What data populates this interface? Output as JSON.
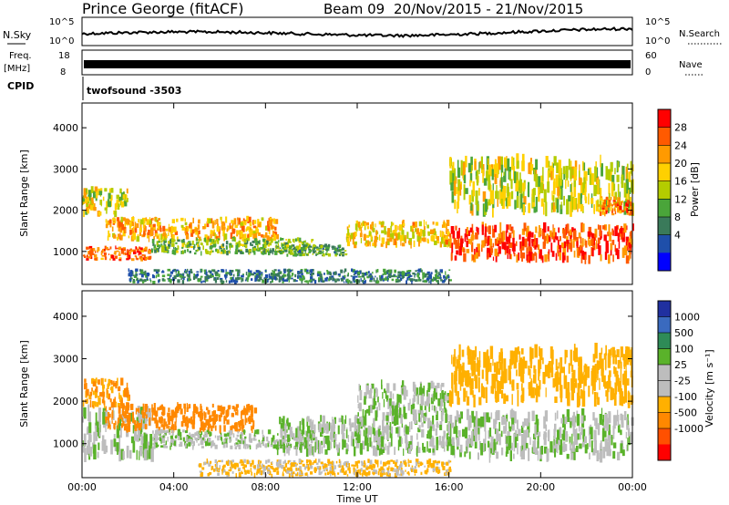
{
  "header": {
    "station": "Prince George (fitACF)",
    "beam": "Beam 09",
    "date_range": "20/Nov/2015 - 21/Nov/2015",
    "cpid_label": "CPID",
    "cpid_value": "twofsound -3503"
  },
  "strips": {
    "nsky_label": "N.Sky",
    "nsky_ticks": [
      "10^5",
      "10^0"
    ],
    "nsearch_label": "N.Search",
    "freq_label_1": "Freq.",
    "freq_label_2": "[MHz]",
    "freq_ticks": [
      "18",
      "8"
    ],
    "nave_label": "Nave",
    "nave_ticks": [
      "60",
      "0"
    ]
  },
  "axes": {
    "ylabel": "Slant Range [km]",
    "xlabel": "Time UT",
    "yticks": [
      1000,
      2000,
      3000,
      4000
    ],
    "ylim": [
      200,
      4600
    ],
    "xticks": [
      "00:00",
      "04:00",
      "08:00",
      "12:00",
      "16:00",
      "20:00",
      "00:00"
    ],
    "xlim_hours": [
      0,
      24
    ]
  },
  "colorbars": {
    "power": {
      "label": "Power [dB]",
      "ticks": [
        "28",
        "24",
        "20",
        "16",
        "12",
        "8",
        "4"
      ],
      "colors": [
        "#ff0000",
        "#ff5a00",
        "#ff9a00",
        "#ffd000",
        "#b4cc00",
        "#4aa53a",
        "#3a7a5a",
        "#1f4faa",
        "#0000ff"
      ]
    },
    "velocity": {
      "label": "Velocity [m s⁻¹]",
      "ticks": [
        "1000",
        "500",
        "100",
        "25",
        "-25",
        "-100",
        "-500",
        "-1000"
      ],
      "colors": [
        "#2030a0",
        "#3a6abf",
        "#2e8b57",
        "#5ab22a",
        "#bdbdbd",
        "#bdbdbd",
        "#ffb000",
        "#ff8800",
        "#ff5000",
        "#ff0000"
      ]
    }
  },
  "chart_data": [
    {
      "type": "heatmap",
      "name": "Power",
      "xlabel": "Time UT",
      "ylabel": "Slant Range [km]",
      "xlim": [
        0,
        24
      ],
      "ylim": [
        200,
        4600
      ],
      "colorbar": "Power [dB]",
      "regions": [
        {
          "t0": 0.0,
          "t1": 3.0,
          "r0": 800,
          "r1": 1100,
          "value": 26
        },
        {
          "t0": 0.0,
          "t1": 2.0,
          "r0": 1900,
          "r1": 2500,
          "value": 18
        },
        {
          "t0": 1.0,
          "t1": 8.5,
          "r0": 1300,
          "r1": 1800,
          "value": 22
        },
        {
          "t0": 3.0,
          "t1": 10.0,
          "r0": 950,
          "r1": 1300,
          "value": 14
        },
        {
          "t0": 8.5,
          "t1": 11.5,
          "r0": 900,
          "r1": 1150,
          "value": 12
        },
        {
          "t0": 11.5,
          "t1": 16.0,
          "r0": 1150,
          "r1": 1700,
          "value": 20
        },
        {
          "t0": 16.0,
          "t1": 24.0,
          "r0": 800,
          "r1": 1600,
          "value": 27
        },
        {
          "t0": 16.0,
          "t1": 24.0,
          "r0": 2000,
          "r1": 3200,
          "value": 17
        },
        {
          "t0": 22.5,
          "t1": 24.0,
          "r0": 1900,
          "r1": 2300,
          "value": 25
        },
        {
          "t0": 2.0,
          "t1": 16.0,
          "r0": 250,
          "r1": 550,
          "value": 9
        }
      ]
    },
    {
      "type": "heatmap",
      "name": "Velocity",
      "xlabel": "Time UT",
      "ylabel": "Slant Range [km]",
      "xlim": [
        0,
        24
      ],
      "ylim": [
        200,
        4600
      ],
      "colorbar": "Velocity [m s⁻¹]",
      "regions": [
        {
          "t0": 0.0,
          "t1": 3.0,
          "r0": 700,
          "r1": 1800,
          "value": 0
        },
        {
          "t0": 0.0,
          "t1": 2.0,
          "r0": 1900,
          "r1": 2500,
          "value": -300
        },
        {
          "t0": 1.0,
          "t1": 7.5,
          "r0": 1300,
          "r1": 1900,
          "value": -400
        },
        {
          "t0": 3.0,
          "t1": 10.0,
          "r0": 900,
          "r1": 1300,
          "value": 0
        },
        {
          "t0": 8.5,
          "t1": 16.0,
          "r0": 800,
          "r1": 1600,
          "value": 0
        },
        {
          "t0": 12.0,
          "t1": 16.0,
          "r0": 1600,
          "r1": 2400,
          "value": 0
        },
        {
          "t0": 16.0,
          "t1": 24.0,
          "r0": 700,
          "r1": 1700,
          "value": 0
        },
        {
          "t0": 16.0,
          "t1": 24.0,
          "r0": 2000,
          "r1": 3200,
          "value": -200
        },
        {
          "t0": 5.0,
          "t1": 16.0,
          "r0": 250,
          "r1": 600,
          "value": -80
        }
      ]
    }
  ]
}
